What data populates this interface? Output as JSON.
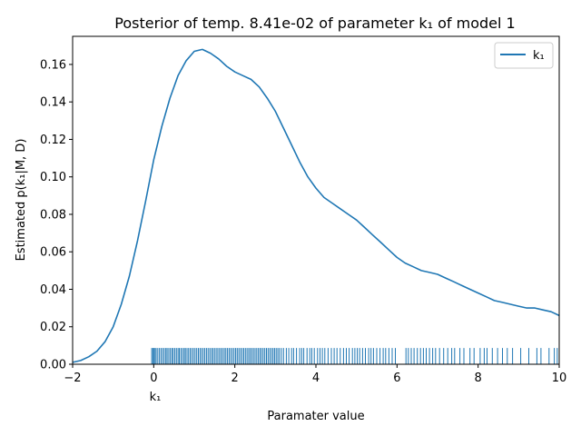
{
  "chart_data": {
    "type": "line",
    "title": "Posterior of temp. 8.41e-02 of parameter k₁ of model 1",
    "xlabel": "Paramater value",
    "ylabel": "Estimated p(k₁|M, D)",
    "x_annotation": "k₁",
    "xlim": [
      -2,
      10
    ],
    "ylim": [
      0,
      0.175
    ],
    "xticks": [
      -2,
      0,
      2,
      4,
      6,
      8,
      10
    ],
    "yticks": [
      0.0,
      0.02,
      0.04,
      0.06,
      0.08,
      0.1,
      0.12,
      0.14,
      0.16
    ],
    "ytick_labels": [
      "0.00",
      "0.02",
      "0.04",
      "0.06",
      "0.08",
      "0.10",
      "0.12",
      "0.14",
      "0.16"
    ],
    "grid": false,
    "legend_position": "top-right",
    "series": [
      {
        "name": "k₁",
        "color": "#1f77b4",
        "x": [
          -2.0,
          -1.8,
          -1.6,
          -1.4,
          -1.2,
          -1.0,
          -0.8,
          -0.6,
          -0.4,
          -0.2,
          0.0,
          0.2,
          0.4,
          0.6,
          0.8,
          1.0,
          1.2,
          1.4,
          1.6,
          1.8,
          2.0,
          2.2,
          2.4,
          2.6,
          2.8,
          3.0,
          3.2,
          3.4,
          3.6,
          3.8,
          4.0,
          4.2,
          4.4,
          4.6,
          4.8,
          5.0,
          5.2,
          5.4,
          5.6,
          5.8,
          6.0,
          6.2,
          6.4,
          6.6,
          6.8,
          7.0,
          7.2,
          7.4,
          7.6,
          7.8,
          8.0,
          8.2,
          8.4,
          8.6,
          8.8,
          9.0,
          9.2,
          9.4,
          9.6,
          9.8,
          10.0
        ],
        "y": [
          0.001,
          0.002,
          0.004,
          0.007,
          0.012,
          0.02,
          0.032,
          0.047,
          0.066,
          0.087,
          0.109,
          0.127,
          0.142,
          0.154,
          0.162,
          0.167,
          0.168,
          0.166,
          0.163,
          0.159,
          0.156,
          0.154,
          0.152,
          0.148,
          0.142,
          0.135,
          0.126,
          0.117,
          0.108,
          0.1,
          0.094,
          0.089,
          0.086,
          0.083,
          0.08,
          0.077,
          0.073,
          0.069,
          0.065,
          0.061,
          0.057,
          0.054,
          0.052,
          0.05,
          0.049,
          0.048,
          0.046,
          0.044,
          0.042,
          0.04,
          0.038,
          0.036,
          0.034,
          0.033,
          0.032,
          0.031,
          0.03,
          0.03,
          0.029,
          0.028,
          0.026
        ]
      }
    ],
    "rug": {
      "color": "#1f77b4",
      "x": [
        -0.05,
        -0.02,
        0.0,
        0.03,
        0.06,
        0.1,
        0.14,
        0.18,
        0.22,
        0.26,
        0.3,
        0.33,
        0.37,
        0.41,
        0.45,
        0.48,
        0.52,
        0.56,
        0.6,
        0.63,
        0.67,
        0.71,
        0.75,
        0.78,
        0.82,
        0.86,
        0.9,
        0.94,
        0.98,
        1.02,
        1.06,
        1.1,
        1.14,
        1.18,
        1.22,
        1.26,
        1.3,
        1.34,
        1.38,
        1.42,
        1.46,
        1.5,
        1.54,
        1.58,
        1.62,
        1.66,
        1.7,
        1.74,
        1.78,
        1.82,
        1.86,
        1.9,
        1.94,
        1.98,
        2.02,
        2.06,
        2.1,
        2.14,
        2.18,
        2.22,
        2.26,
        2.3,
        2.34,
        2.38,
        2.42,
        2.46,
        2.5,
        2.54,
        2.58,
        2.62,
        2.66,
        2.7,
        2.74,
        2.78,
        2.82,
        2.86,
        2.9,
        2.94,
        2.98,
        3.02,
        3.06,
        3.1,
        3.15,
        3.2,
        3.27,
        3.33,
        3.4,
        3.45,
        3.52,
        3.6,
        3.65,
        3.7,
        3.78,
        3.85,
        3.9,
        3.96,
        4.04,
        4.1,
        4.16,
        4.22,
        4.3,
        4.38,
        4.45,
        4.52,
        4.6,
        4.68,
        4.75,
        4.82,
        4.9,
        4.96,
        5.02,
        5.08,
        5.15,
        5.22,
        5.3,
        5.36,
        5.42,
        5.5,
        5.58,
        5.66,
        5.72,
        5.8,
        5.88,
        5.96,
        6.22,
        6.28,
        6.35,
        6.42,
        6.5,
        6.58,
        6.65,
        6.72,
        6.8,
        6.88,
        6.95,
        7.05,
        7.15,
        7.25,
        7.35,
        7.42,
        7.55,
        7.65,
        7.8,
        7.9,
        8.05,
        8.15,
        8.22,
        8.35,
        8.48,
        8.6,
        8.72,
        8.85,
        9.05,
        9.25,
        9.45,
        9.55,
        9.75,
        9.88,
        9.95
      ]
    }
  }
}
